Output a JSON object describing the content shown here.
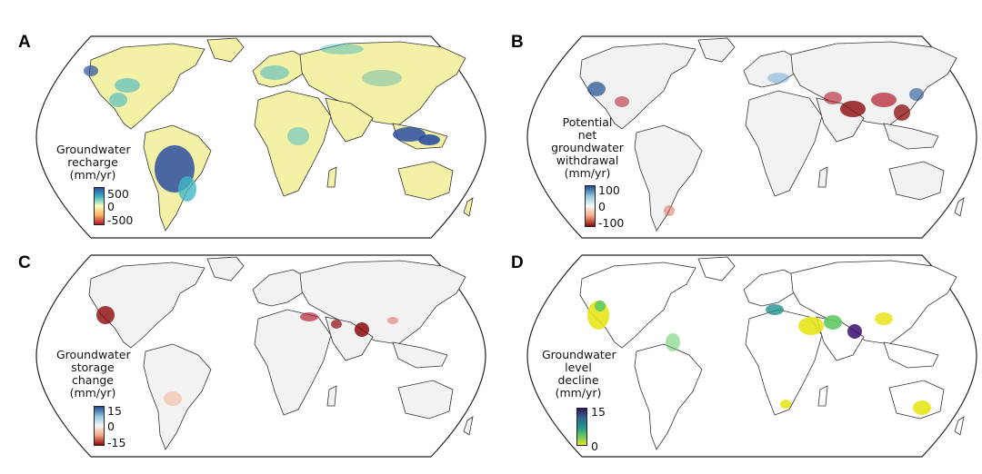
{
  "panels": [
    {
      "label": "A",
      "legend": {
        "title_lines": [
          "Groundwater",
          "recharge",
          "(mm/yr)"
        ],
        "ticks": [
          "500",
          "0",
          "-500"
        ]
      },
      "colors": {
        "land": "#f3f1a6",
        "low": "#b2182b",
        "mid": "#ffffbf",
        "high": "#2c4fa0"
      }
    },
    {
      "label": "B",
      "legend": {
        "title_lines": [
          "Potential",
          "net",
          "groundwater",
          "withdrawal",
          "(mm/yr)"
        ],
        "ticks": [
          "100",
          "0",
          "-100"
        ]
      },
      "colors": {
        "land": "#f2f2f2",
        "low": "#8b0a0a",
        "mid": "#f7f7f7",
        "high": "#1f4f8f"
      }
    },
    {
      "label": "C",
      "legend": {
        "title_lines": [
          "Groundwater",
          "storage",
          "change",
          "(mm/yr)"
        ],
        "ticks": [
          "15",
          "0",
          "-15"
        ]
      },
      "colors": {
        "land": "#f2f2f2",
        "low": "#8b0a0a",
        "mid": "#f7f7f7",
        "high": "#1f4f8f"
      }
    },
    {
      "label": "D",
      "legend": {
        "title_lines": [
          "Groundwater",
          "level",
          "decline",
          "(mm/yr)"
        ],
        "ticks": [
          "15",
          "0"
        ]
      },
      "colors": {
        "land": "#ffffff",
        "low": "#e8e419",
        "mid": "#21908d",
        "high": "#3b0f70"
      }
    }
  ]
}
